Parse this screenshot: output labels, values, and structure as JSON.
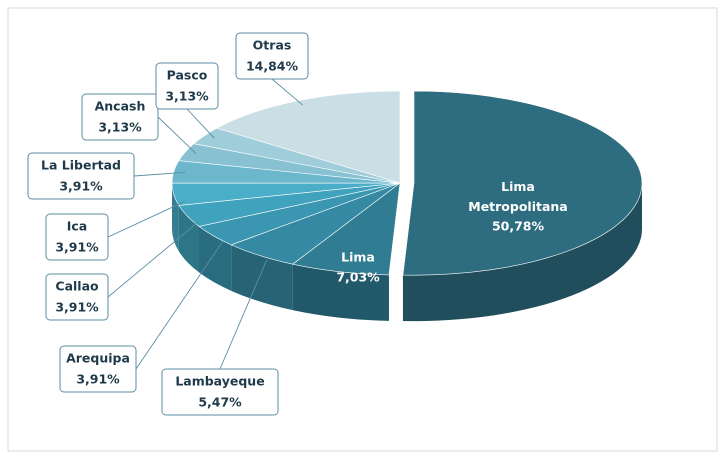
{
  "chart_data": {
    "type": "pie3d",
    "categories": [
      "Lima Metropolitana",
      "Lima",
      "Lambayeque",
      "Arequipa",
      "Callao",
      "Ica",
      "La Libertad",
      "Ancash",
      "Pasco",
      "Otras"
    ],
    "values": [
      50.78,
      7.03,
      5.47,
      3.91,
      3.91,
      3.91,
      3.91,
      3.13,
      3.13,
      14.84
    ],
    "value_labels": [
      "50,78%",
      "7,03%",
      "5,47%",
      "3,91%",
      "3,91%",
      "3,91%",
      "3,91%",
      "3,13%",
      "3,13%",
      "14,84%"
    ],
    "colors": [
      "#2e6d80",
      "#2f7c93",
      "#3589a2",
      "#3a96b1",
      "#41a2bd",
      "#4aaec8",
      "#6db7cc",
      "#88c2d2",
      "#9fcdd9",
      "#c9dee5"
    ]
  }
}
